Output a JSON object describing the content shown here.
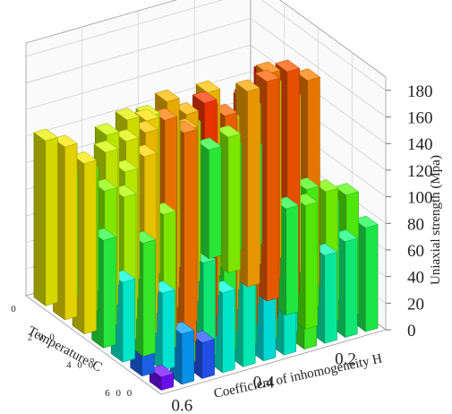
{
  "chart_data": {
    "type": "bar3d",
    "title": "",
    "xlabel": "Coefficient of inhomogeneity H",
    "ylabel": "Temperature°C",
    "zlabel": "Uniaxial strength (Mpa)",
    "x_ticks": [
      "0.2",
      "0.4",
      "0.6"
    ],
    "y_ticks": [
      "0",
      "200",
      "400",
      "600"
    ],
    "z_ticks": [
      "0",
      "20",
      "40",
      "60",
      "80",
      "100",
      "120",
      "140",
      "160",
      "180"
    ],
    "zlim": [
      0,
      190
    ],
    "grid": true,
    "colormap": "jet",
    "colors": [
      "#8c00ff",
      "#2f3cff",
      "#00b4ff",
      "#00ffe6",
      "#19ff55",
      "#63ff00",
      "#c8ff00",
      "#ffe600",
      "#ffa000",
      "#ff5a00",
      "#ff1e00"
    ],
    "h_values": [
      0.6,
      0.55,
      0.5,
      0.45,
      0.4,
      0.35,
      0.3,
      0.25,
      0.2,
      0.15,
      0.1
    ],
    "t_values": [
      0,
      100,
      200,
      300,
      400,
      500,
      600
    ],
    "values": [
      [
        124,
        95,
        92,
        115,
        122,
        120,
        110,
        105,
        82,
        80,
        75
      ],
      [
        130,
        99,
        117,
        121,
        132,
        142,
        119,
        140,
        102,
        120,
        133
      ],
      [
        128,
        103,
        113,
        138,
        135,
        143,
        105,
        130,
        147,
        156,
        133
      ],
      [
        81,
        109,
        135,
        158,
        146,
        159,
        143,
        157,
        165,
        168,
        157
      ],
      [
        60,
        85,
        102,
        159,
        177,
        163,
        170,
        185,
        80,
        90,
        75
      ],
      [
        30,
        58,
        91,
        72,
        83,
        77,
        92,
        62,
        93,
        99,
        92
      ],
      [
        10,
        38,
        27,
        60,
        63,
        55,
        61,
        87,
        66,
        72,
        78
      ]
    ]
  }
}
